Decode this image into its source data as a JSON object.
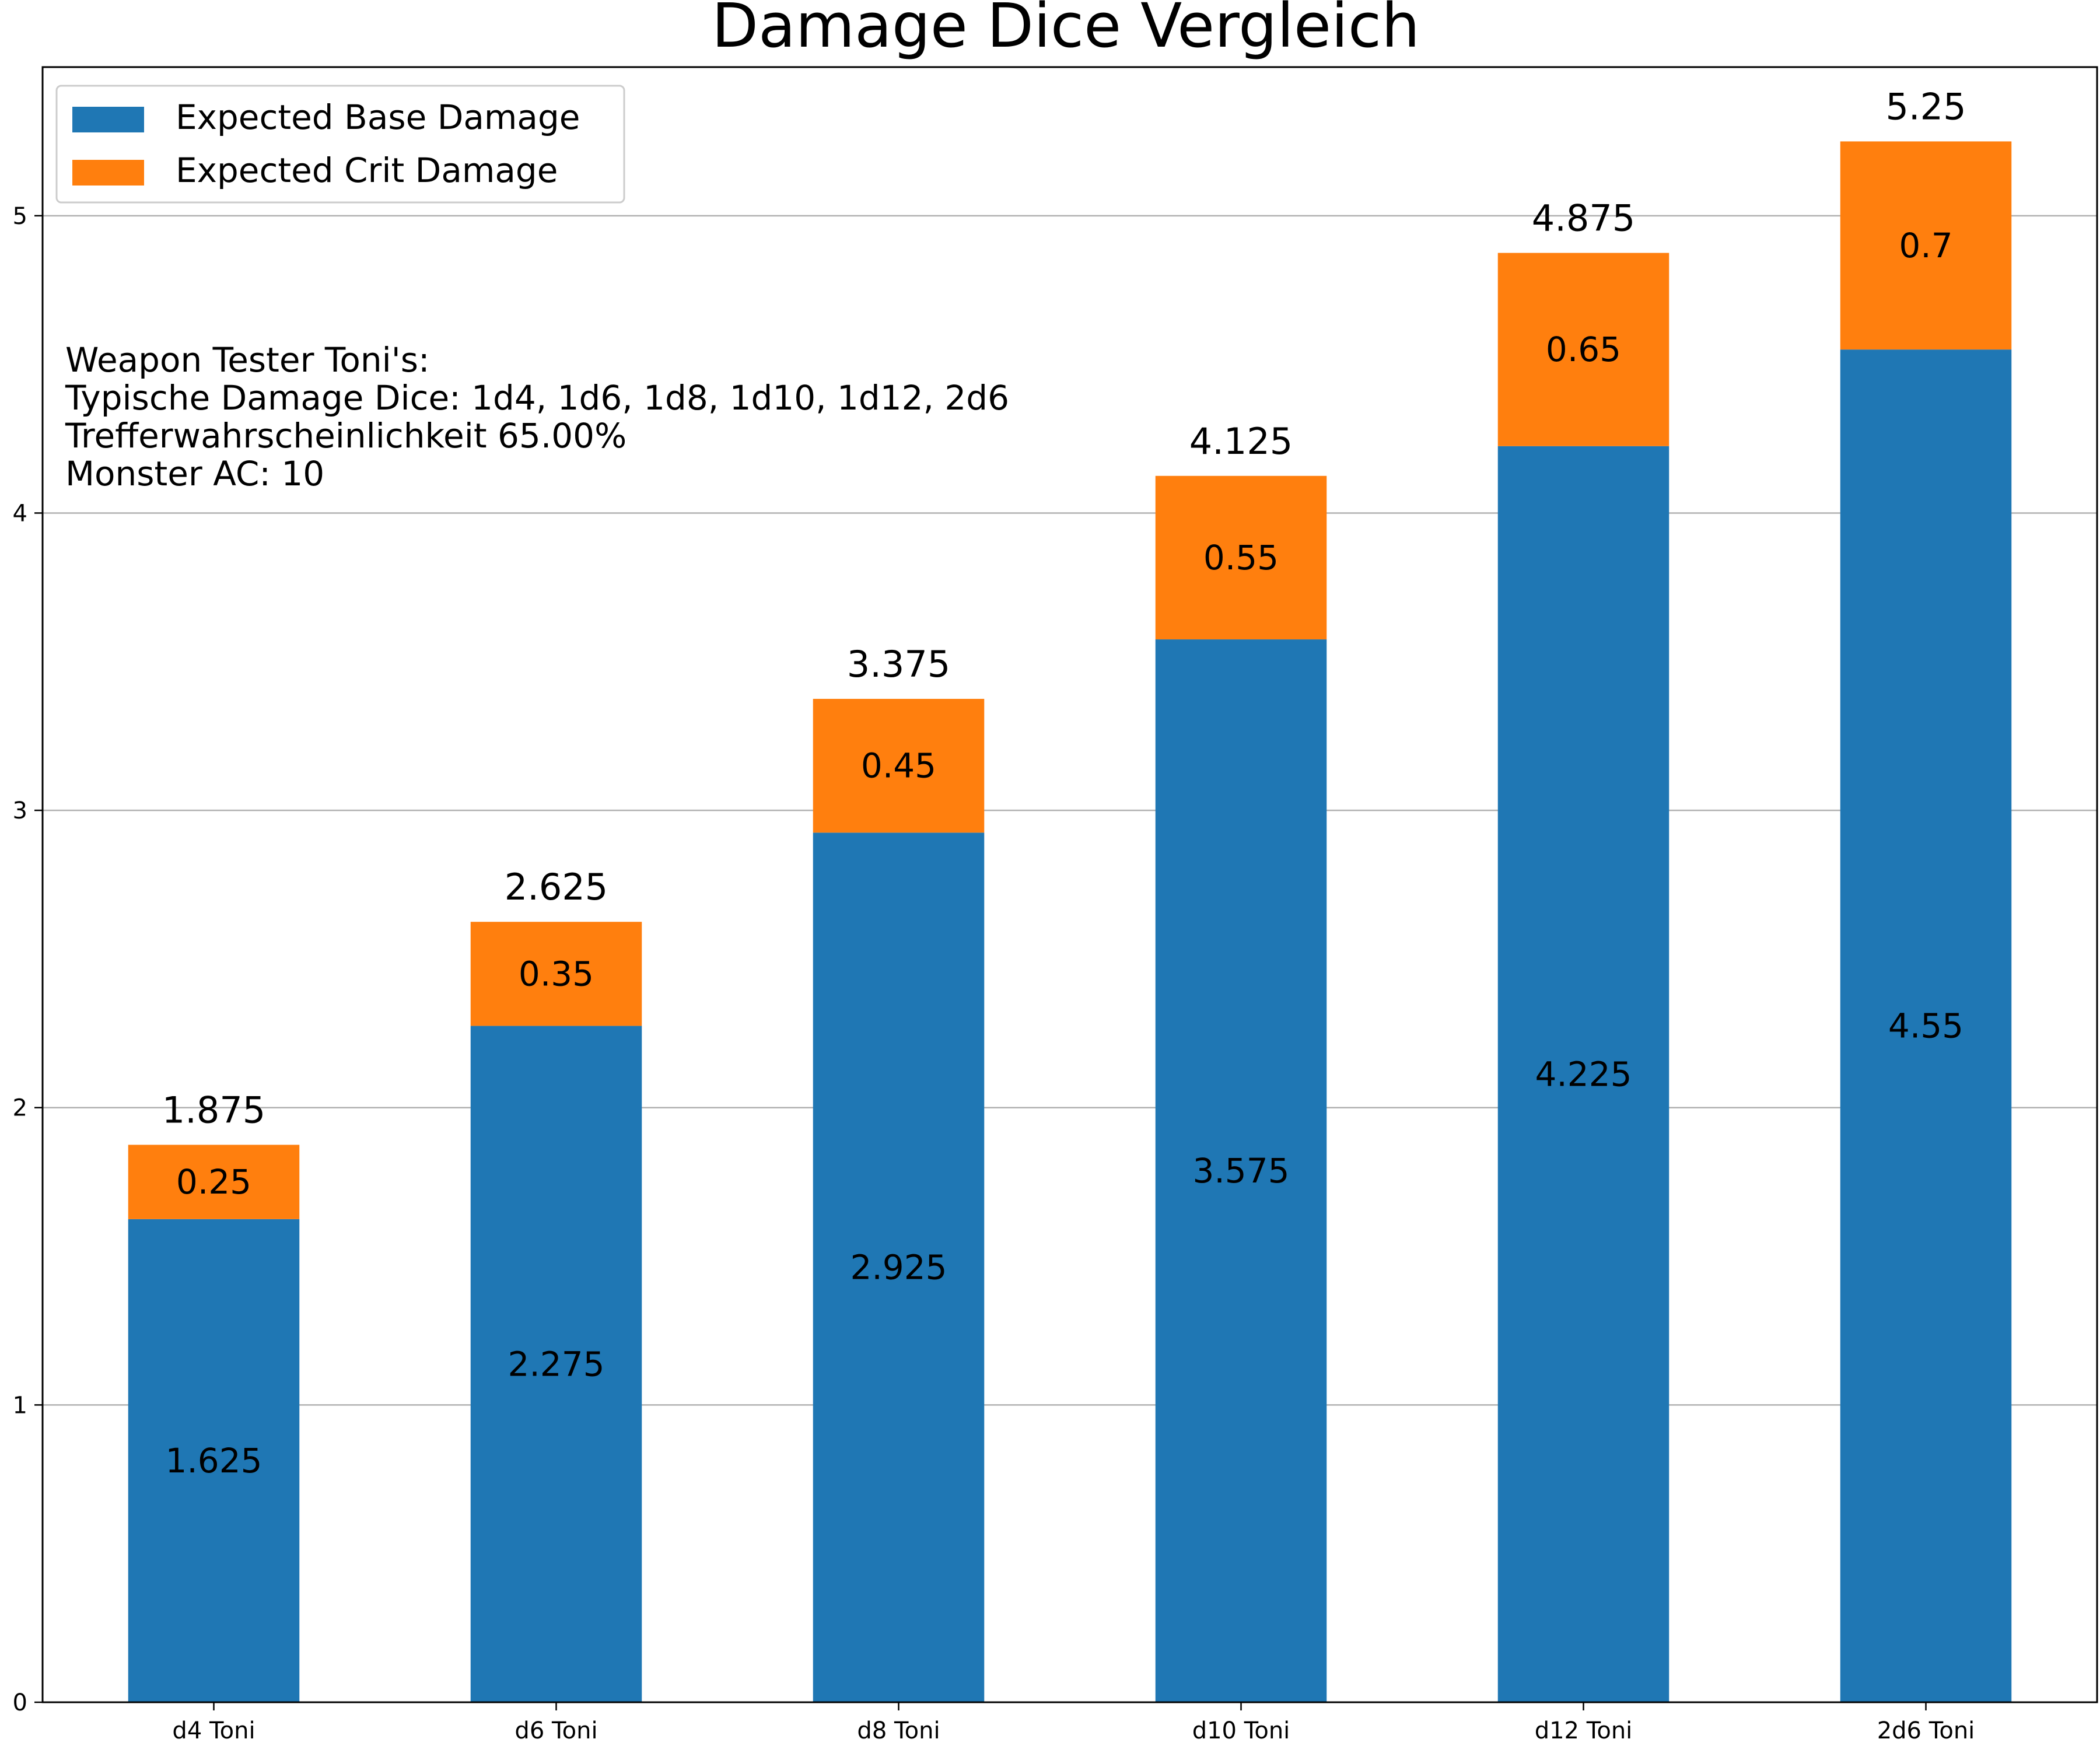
{
  "chart_data": {
    "type": "bar",
    "stacked": true,
    "title": "Damage Dice Vergleich",
    "xlabel": "",
    "ylabel": "",
    "categories": [
      "d4 Toni",
      "d6 Toni",
      "d8 Toni",
      "d10 Toni",
      "d12 Toni",
      "2d6 Toni"
    ],
    "series": [
      {
        "name": "Expected Base Damage",
        "values": [
          1.625,
          2.275,
          2.925,
          3.575,
          4.225,
          4.55
        ],
        "color": "#1f77b4"
      },
      {
        "name": "Expected Crit Damage",
        "values": [
          0.25,
          0.35,
          0.45,
          0.55,
          0.65,
          0.7
        ],
        "color": "#ff7f0e"
      }
    ],
    "totals": [
      1.875,
      2.625,
      3.375,
      4.125,
      4.875,
      5.25
    ],
    "ylim": [
      0,
      5.5
    ],
    "yticks": [
      0,
      1,
      2,
      3,
      4,
      5
    ],
    "grid": "y",
    "legend": "top-left",
    "annotation": [
      "Weapon Tester Toni's:",
      "Typische Damage Dice: 1d4, 1d6, 1d8, 1d10, 1d12, 2d6",
      "Trefferwahrscheinlichkeit 65.00%",
      "Monster AC: 10"
    ]
  }
}
